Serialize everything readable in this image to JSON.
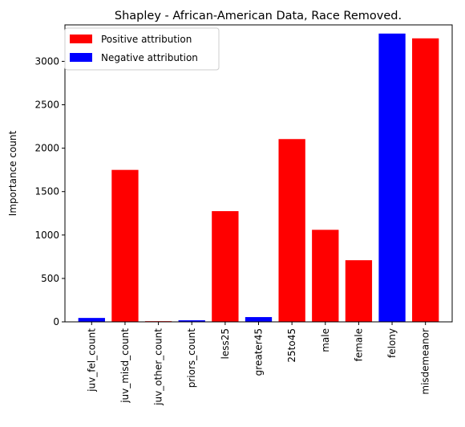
{
  "chart_data": {
    "type": "bar",
    "title": "Shapley - African-American Data, Race Removed.",
    "xlabel": "",
    "ylabel": "Importance count",
    "ylim": [
      0,
      3420
    ],
    "yticks": [
      0,
      500,
      1000,
      1500,
      2000,
      2500,
      3000
    ],
    "grid": false,
    "legend_position": "top-left",
    "categories": [
      "juv_fel_count",
      "juv_misd_count",
      "juv_other_count",
      "priors_count",
      "less25",
      "greater45",
      "25to45",
      "male",
      "female",
      "felony",
      "misdemeanor"
    ],
    "values": [
      45,
      1750,
      8,
      18,
      1275,
      55,
      2105,
      1060,
      710,
      3320,
      3265
    ],
    "bar_types": [
      "negative",
      "positive",
      "positive",
      "negative",
      "positive",
      "negative",
      "positive",
      "positive",
      "positive",
      "negative",
      "positive"
    ],
    "legend": [
      {
        "key": "positive",
        "label": "Positive attribution",
        "color": "#ff0000"
      },
      {
        "key": "negative",
        "label": "Negative attribution",
        "color": "#0000ff"
      }
    ]
  }
}
